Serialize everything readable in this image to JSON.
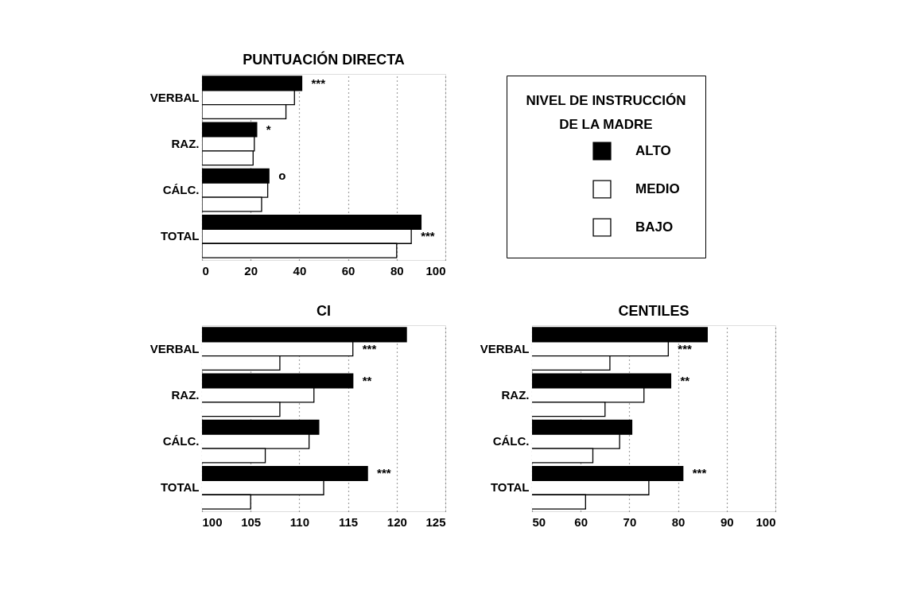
{
  "chart_data": [
    {
      "type": "bar",
      "orientation": "horizontal",
      "title": "PUNTUACIÓN DIRECTA",
      "categories": [
        "VERBAL",
        "RAZ.",
        "CÁLC.",
        "TOTAL"
      ],
      "series": [
        {
          "name": "ALTO",
          "color": "#000000",
          "values": [
            41,
            22.5,
            27.5,
            90
          ],
          "value_labels": [
            "***",
            "*",
            "o",
            null
          ]
        },
        {
          "name": "MEDIO",
          "color": "#ffffff",
          "values": [
            38,
            21.5,
            27,
            86
          ],
          "value_labels": [
            null,
            null,
            null,
            "***"
          ]
        },
        {
          "name": "BAJO",
          "color": "#ffffff",
          "values": [
            34.5,
            21,
            24.5,
            80
          ]
        }
      ],
      "xlim": [
        0,
        100
      ],
      "xticks": [
        0,
        20,
        40,
        60,
        80,
        100
      ],
      "grid": "x",
      "legend": "right",
      "legend_title": "NIVEL DE INSTRUCCIÓN DE LA MADRE"
    },
    {
      "type": "bar",
      "orientation": "horizontal",
      "title": "CI",
      "categories": [
        "VERBAL",
        "RAZ.",
        "CÁLC.",
        "TOTAL"
      ],
      "series": [
        {
          "name": "ALTO",
          "color": "#000000",
          "values": [
            121,
            115.5,
            112,
            117
          ],
          "value_labels": [
            null,
            "**",
            null,
            "***"
          ]
        },
        {
          "name": "MEDIO",
          "color": "#ffffff",
          "values": [
            115.5,
            111.5,
            111,
            112.5
          ],
          "value_labels": [
            "***",
            null,
            null,
            null
          ]
        },
        {
          "name": "BAJO",
          "color": "#ffffff",
          "values": [
            108,
            108,
            106.5,
            105
          ]
        }
      ],
      "xlim": [
        100,
        125
      ],
      "xticks": [
        100,
        105,
        110,
        115,
        120,
        125
      ],
      "grid": "x"
    },
    {
      "type": "bar",
      "orientation": "horizontal",
      "title": "CENTILES",
      "categories": [
        "VERBAL",
        "RAZ.",
        "CÁLC.",
        "TOTAL"
      ],
      "series": [
        {
          "name": "ALTO",
          "color": "#000000",
          "values": [
            86,
            78.5,
            70.5,
            81
          ],
          "value_labels": [
            null,
            "**",
            null,
            "***"
          ]
        },
        {
          "name": "MEDIO",
          "color": "#ffffff",
          "values": [
            78,
            73,
            68,
            74
          ],
          "value_labels": [
            "***",
            null,
            null,
            null
          ]
        },
        {
          "name": "BAJO",
          "color": "#ffffff",
          "values": [
            66,
            65,
            62.5,
            61
          ]
        }
      ],
      "xlim": [
        50,
        100
      ],
      "xticks": [
        50,
        60,
        70,
        80,
        90,
        100
      ],
      "grid": "x"
    }
  ]
}
